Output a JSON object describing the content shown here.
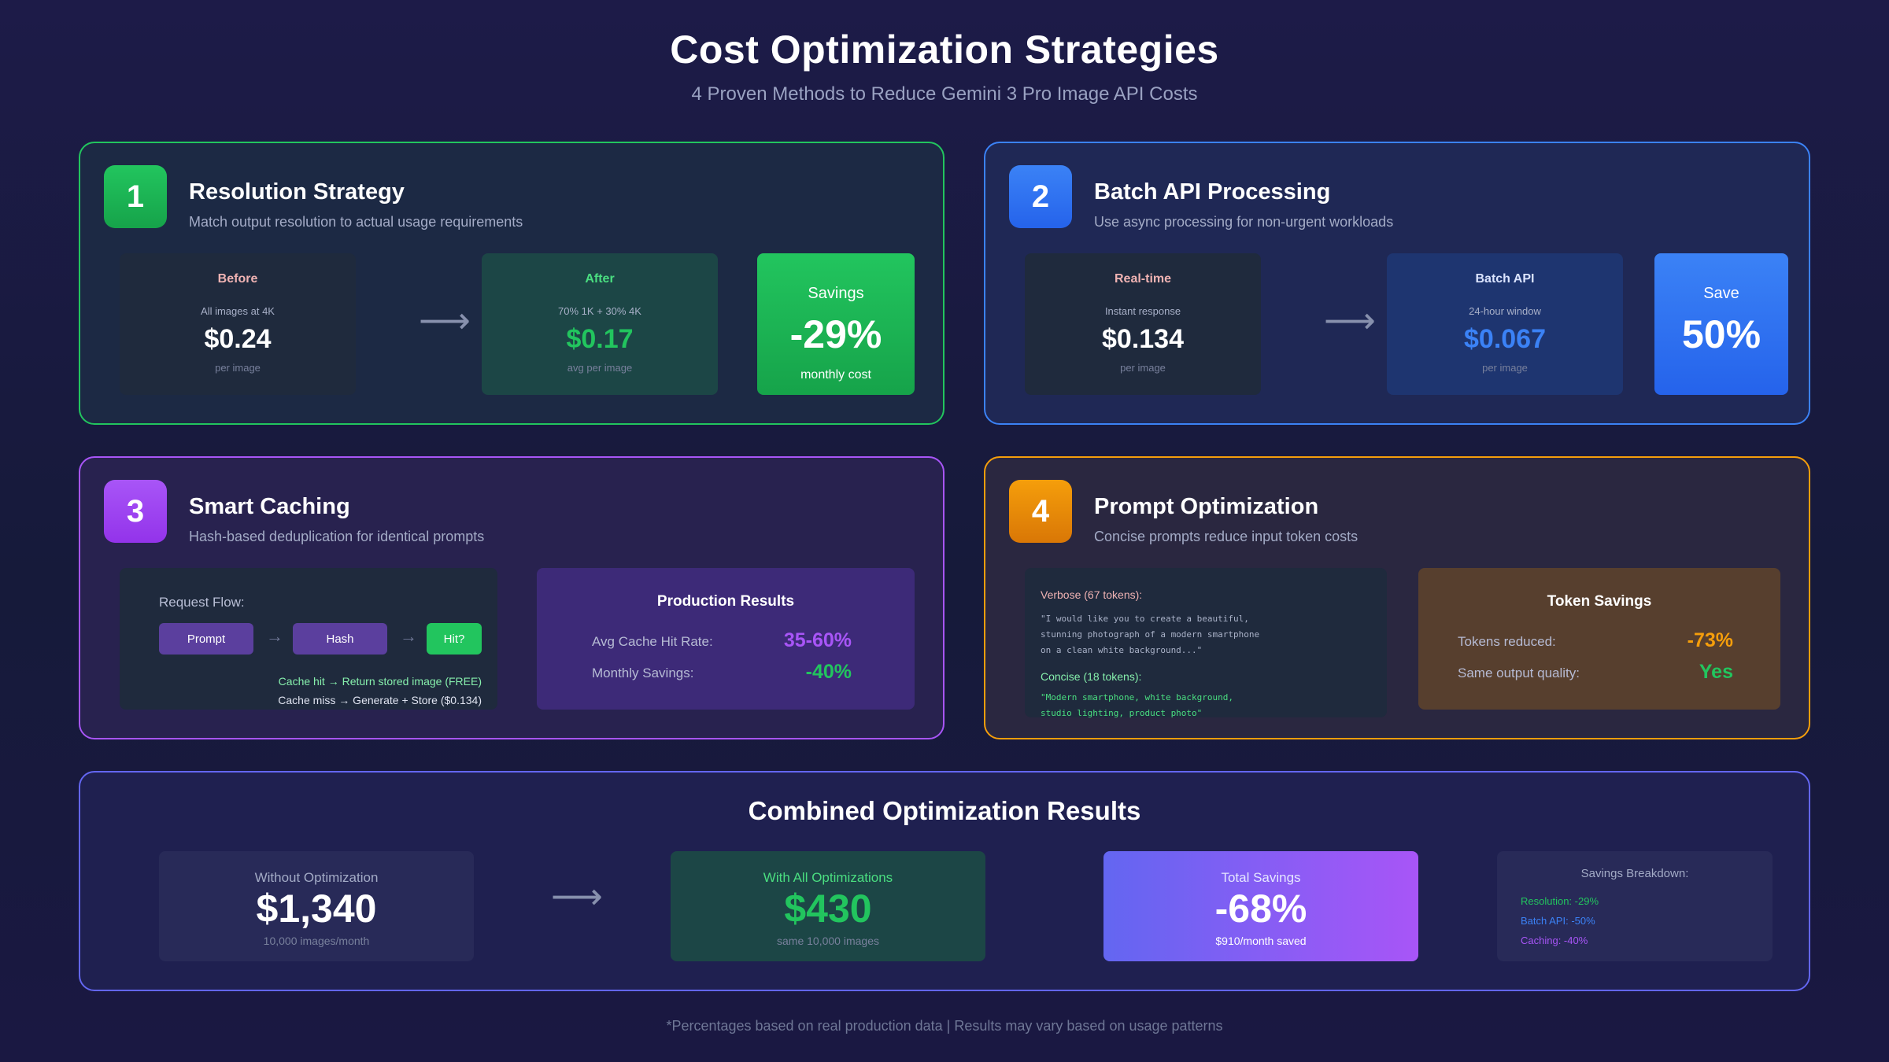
{
  "header": {
    "title": "Cost Optimization Strategies",
    "subtitle": "4 Proven Methods to Reduce Gemini 3 Pro Image API Costs"
  },
  "strategies": [
    {
      "number": "1",
      "title": "Resolution Strategy",
      "description": "Match output resolution to actual usage requirements",
      "before": {
        "label": "Before",
        "sub": "All images at 4K",
        "value": "$0.24",
        "unit": "per image"
      },
      "after": {
        "label": "After",
        "sub": "70% 1K + 30% 4K",
        "value": "$0.17",
        "unit": "avg per image"
      },
      "savings": {
        "label": "Savings",
        "value": "-29%",
        "unit": "monthly cost"
      }
    },
    {
      "number": "2",
      "title": "Batch API Processing",
      "description": "Use async processing for non-urgent workloads",
      "before": {
        "label": "Real-time",
        "sub": "Instant response",
        "value": "$0.134",
        "unit": "per image"
      },
      "after": {
        "label": "Batch API",
        "sub": "24-hour window",
        "value": "$0.067",
        "unit": "per image"
      },
      "savings": {
        "label": "Save",
        "value": "50%"
      }
    },
    {
      "number": "3",
      "title": "Smart Caching",
      "description": "Hash-based deduplication for identical prompts",
      "flow": {
        "label": "Request Flow:",
        "steps": [
          "Prompt",
          "Hash",
          "Hit?"
        ],
        "arrow": "→",
        "notes": [
          "Cache hit → Return stored image (FREE)",
          "Cache miss → Generate + Store ($0.134)"
        ]
      },
      "results": {
        "title": "Production Results",
        "rows": [
          {
            "key": "Avg Cache Hit Rate:",
            "value": "35-60%"
          },
          {
            "key": "Monthly Savings:",
            "value": "-40%"
          }
        ]
      }
    },
    {
      "number": "4",
      "title": "Prompt Optimization",
      "description": "Concise prompts reduce input token costs",
      "verbose": {
        "label": "Verbose (67 tokens):",
        "lines": [
          "\"I would like you to create a beautiful,",
          "stunning photograph of a modern smartphone",
          "on a clean white background...\""
        ]
      },
      "concise": {
        "label": "Concise (18 tokens):",
        "lines": [
          "\"Modern smartphone, white background,",
          "studio lighting, product photo\""
        ]
      },
      "results": {
        "title": "Token Savings",
        "rows": [
          {
            "key": "Tokens reduced:",
            "value": "-73%"
          },
          {
            "key": "Same output quality:",
            "value": "Yes"
          }
        ]
      }
    }
  ],
  "combined": {
    "title": "Combined Optimization Results",
    "without": {
      "label": "Without Optimization",
      "value": "$1,340",
      "unit": "10,000 images/month"
    },
    "with": {
      "label": "With All Optimizations",
      "value": "$430",
      "unit": "same 10,000 images"
    },
    "total": {
      "label": "Total Savings",
      "value": "-68%",
      "unit": "$910/month saved"
    },
    "breakdown": {
      "title": "Savings Breakdown:",
      "items": [
        "Resolution: -29%",
        "Batch API: -50%",
        "Caching: -40%"
      ]
    }
  },
  "arrow_glyph": "⟶",
  "footer": "*Percentages based on real production data | Results may vary based on usage patterns",
  "colors": {
    "green": "#22c55e",
    "blue": "#3b82f6",
    "purple": "#a855f7",
    "orange": "#f59e0b",
    "indigo": "#6366f1"
  }
}
